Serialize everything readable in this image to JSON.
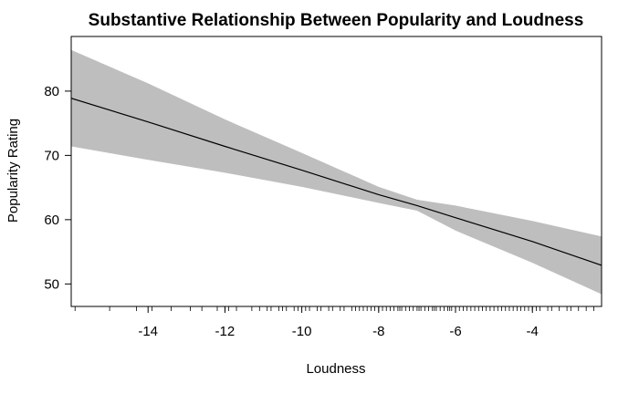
{
  "chart_data": {
    "type": "line",
    "title": "Substantive Relationship Between Popularity and Loudness",
    "xlabel": "Loudness",
    "ylabel": "Popularity Rating",
    "xlim": [
      -16.0,
      -2.2
    ],
    "ylim": [
      46.5,
      88.5
    ],
    "x_ticks": [
      -14,
      -12,
      -10,
      -8,
      -6,
      -4
    ],
    "y_ticks": [
      50,
      60,
      70,
      80
    ],
    "grid": false,
    "legend": "none",
    "colors": {
      "band": "#bebebe",
      "line": "#000000",
      "axis": "#000000"
    },
    "series": [
      {
        "x": [
          -16,
          -14,
          -12,
          -10,
          -8,
          -7,
          -6,
          -4,
          -2.2
        ],
        "fit": [
          78.9,
          75.2,
          71.4,
          67.7,
          63.9,
          62.2,
          60.3,
          56.6,
          52.9
        ],
        "lower": [
          71.4,
          69.3,
          67.3,
          65.1,
          62.6,
          61.4,
          58.3,
          53.3,
          48.4
        ],
        "upper": [
          86.4,
          81.2,
          75.6,
          70.4,
          65.1,
          63.1,
          62.2,
          59.8,
          57.4
        ]
      }
    ],
    "rug_x": [
      -15.9,
      -15.0,
      -14.3,
      -13.9,
      -13.4,
      -12.9,
      -12.6,
      -12.2,
      -12.0,
      -11.9,
      -11.7,
      -11.3,
      -11.1,
      -10.9,
      -10.8,
      -10.6,
      -10.5,
      -10.4,
      -10.2,
      -10.1,
      -9.9,
      -9.8,
      -9.6,
      -9.5,
      -9.3,
      -9.2,
      -9.0,
      -8.9,
      -8.7,
      -8.6,
      -8.5,
      -8.4,
      -8.3,
      -8.2,
      -8.1,
      -8.0,
      -7.9,
      -7.8,
      -7.7,
      -7.6,
      -7.5,
      -7.45,
      -7.4,
      -7.3,
      -7.2,
      -7.1,
      -7.0,
      -6.95,
      -6.9,
      -6.8,
      -6.7,
      -6.6,
      -6.55,
      -6.5,
      -6.4,
      -6.3,
      -6.2,
      -6.15,
      -6.1,
      -6.0,
      -5.9,
      -5.8,
      -5.7,
      -5.6,
      -5.5,
      -5.4,
      -5.3,
      -5.2,
      -5.1,
      -5.0,
      -4.9,
      -4.8,
      -4.7,
      -4.6,
      -4.5,
      -4.4,
      -4.3,
      -4.2,
      -4.1,
      -4.0,
      -3.9,
      -3.8,
      -3.6,
      -3.5,
      -3.3,
      -3.1,
      -3.0,
      -2.8,
      -2.6,
      -2.4
    ]
  }
}
